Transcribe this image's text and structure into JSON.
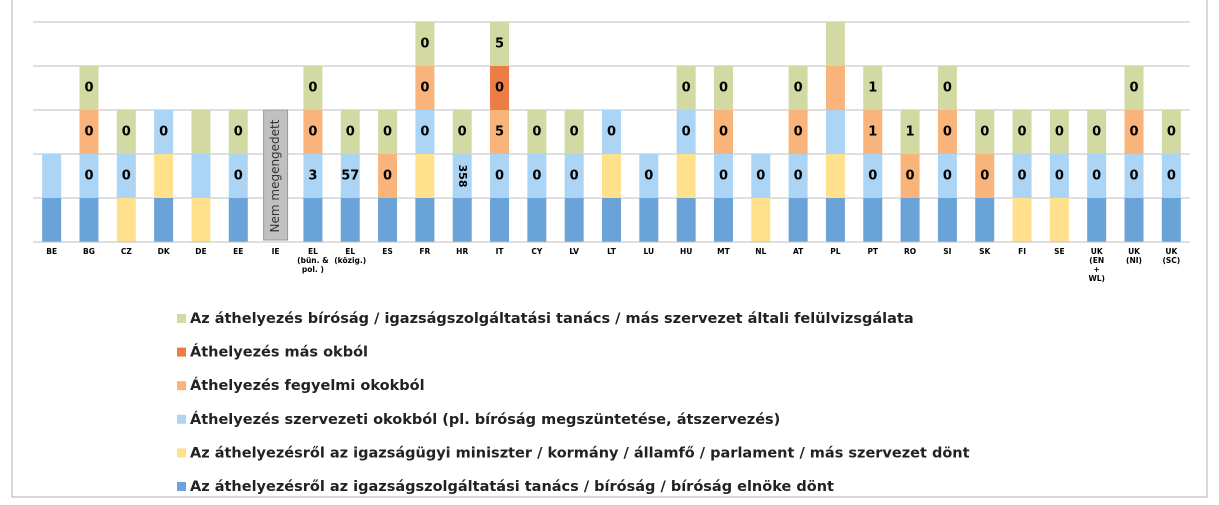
{
  "chart_data": {
    "type": "stacked_bar",
    "categories": [
      "BE",
      "BG",
      "CZ",
      "DK",
      "DE",
      "EE",
      "IE",
      "EL\n(bün. &\npol. )",
      "EL\n(közig.)",
      "ES",
      "FR",
      "HR",
      "IT",
      "CY",
      "LV",
      "LT",
      "LU",
      "HU",
      "MT",
      "NL",
      "AT",
      "PL",
      "PT",
      "RO",
      "SI",
      "SK",
      "FI",
      "SE",
      "UK\n(EN\n+\nWL)",
      "UK\n(NI)",
      "UK\n(SC)"
    ],
    "ylim": [
      0,
      5
    ],
    "yticks": [
      0,
      1,
      2,
      3,
      4,
      5
    ],
    "grid": true,
    "show_tick_labels": false,
    "annotations": [
      {
        "category": 6,
        "text": "Nem megengedett"
      }
    ],
    "series": [
      {
        "name": "Az áthelyezés bíróság / igazságszolgáltatási tanács / más szervezet általi felülvizsgálata",
        "color": "#d3d9a2",
        "values": [
          null,
          1,
          1,
          null,
          1,
          1,
          null,
          1,
          1,
          1,
          1,
          1,
          1,
          1,
          1,
          null,
          null,
          1,
          1,
          null,
          1,
          1,
          1,
          1,
          1,
          1,
          1,
          1,
          1,
          1,
          1
        ],
        "labels": [
          null,
          "0",
          "0",
          null,
          null,
          "0",
          null,
          "0",
          "0",
          "0",
          "0",
          "0",
          "5",
          "0",
          "0",
          null,
          null,
          "0",
          "0",
          null,
          "0",
          null,
          "1",
          "1",
          "0",
          "0",
          "0",
          "0",
          "0",
          "0",
          "0"
        ]
      },
      {
        "name": "Áthelyezés más okból",
        "color": "#ed7d47",
        "values": [
          null,
          null,
          null,
          null,
          null,
          null,
          null,
          null,
          null,
          null,
          null,
          null,
          1,
          null,
          null,
          null,
          null,
          null,
          null,
          null,
          null,
          null,
          null,
          null,
          null,
          null,
          null,
          null,
          null,
          null,
          null
        ],
        "labels": [
          null,
          null,
          null,
          null,
          null,
          null,
          null,
          null,
          null,
          null,
          null,
          null,
          "0",
          null,
          null,
          null,
          null,
          null,
          null,
          null,
          null,
          null,
          null,
          null,
          null,
          null,
          null,
          null,
          null,
          null,
          null
        ]
      },
      {
        "name": "Áthelyezés fegyelmi okokból",
        "color": "#f8b47a",
        "values": [
          null,
          1,
          null,
          null,
          null,
          null,
          null,
          1,
          null,
          1,
          1,
          null,
          1,
          null,
          null,
          null,
          null,
          null,
          1,
          null,
          1,
          1,
          1,
          1,
          1,
          1,
          null,
          null,
          null,
          1,
          null
        ],
        "labels": [
          null,
          "0",
          null,
          null,
          null,
          null,
          null,
          "0",
          null,
          "0",
          "0",
          null,
          "5",
          null,
          null,
          null,
          null,
          null,
          "0",
          null,
          "0",
          null,
          "1",
          "0",
          "0",
          "0",
          null,
          null,
          null,
          "0",
          null
        ]
      },
      {
        "name": "Áthelyezés szervezeti okokból (pl. bíróság megszüntetése, átszervezés)",
        "color": "#acd5f5",
        "values": [
          1,
          1,
          1,
          1,
          1,
          1,
          null,
          1,
          1,
          null,
          1,
          1,
          1,
          1,
          1,
          1,
          1,
          1,
          1,
          1,
          1,
          1,
          1,
          null,
          1,
          null,
          1,
          1,
          1,
          1,
          1
        ],
        "labels": [
          null,
          "0",
          "0",
          "0",
          null,
          "0",
          null,
          "3",
          "57",
          null,
          "0",
          "358",
          "0",
          "0",
          "0",
          "0",
          "0",
          "0",
          "0",
          "0",
          "0",
          null,
          "0",
          null,
          "0",
          null,
          "0",
          "0",
          "0",
          "0",
          "0"
        ]
      },
      {
        "name": "Az áthelyezésről az igazságügyi miniszter / kormány / államfő / parlament / más szervezet dönt",
        "color": "#ffe08c",
        "values": [
          null,
          null,
          1,
          1,
          1,
          null,
          null,
          null,
          null,
          null,
          1,
          null,
          null,
          null,
          null,
          1,
          null,
          1,
          null,
          1,
          null,
          1,
          null,
          null,
          null,
          null,
          1,
          1,
          null,
          null,
          null
        ],
        "labels": [
          null,
          null,
          null,
          null,
          null,
          null,
          null,
          null,
          null,
          null,
          null,
          null,
          null,
          null,
          null,
          null,
          null,
          null,
          null,
          null,
          null,
          null,
          null,
          null,
          null,
          null,
          null,
          null,
          null,
          null,
          null
        ]
      },
      {
        "name": "Az áthelyezésről az igazságszolgáltatási tanács / bíróság / bíróság elnöke dönt",
        "color": "#6aa3d7",
        "values": [
          1,
          1,
          null,
          1,
          null,
          1,
          null,
          1,
          1,
          1,
          1,
          1,
          1,
          1,
          1,
          1,
          1,
          1,
          1,
          null,
          1,
          1,
          1,
          1,
          1,
          1,
          null,
          null,
          1,
          1,
          1
        ],
        "labels": [
          null,
          null,
          null,
          null,
          null,
          null,
          null,
          null,
          null,
          null,
          null,
          null,
          null,
          null,
          null,
          null,
          null,
          null,
          null,
          null,
          null,
          null,
          null,
          null,
          null,
          null,
          null,
          null,
          null,
          null,
          null
        ]
      }
    ]
  }
}
